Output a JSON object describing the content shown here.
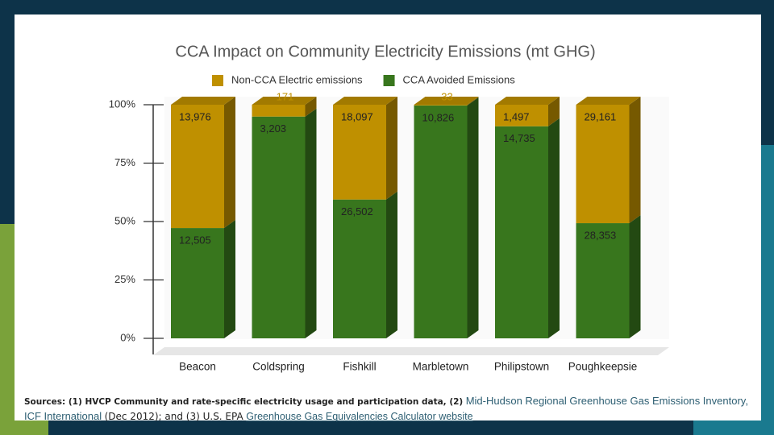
{
  "chart_data": {
    "type": "stacked_percent_bar",
    "title": "CCA Impact on Community Electricity Emissions (mt GHG)",
    "categories": [
      "Beacon",
      "Coldspring",
      "Fishkill",
      "Marbletown",
      "Philipstown",
      "Poughkeepsie"
    ],
    "series": [
      {
        "name": "CCA Avoided Emissions",
        "color": "#38761d",
        "values": [
          12505,
          3203,
          26502,
          10826,
          14735,
          28353
        ],
        "value_labels": [
          "12,505",
          "3,203",
          "26,502",
          "10,826",
          "14,735",
          "28,353"
        ]
      },
      {
        "name": "Non-CCA Electric emissions",
        "color": "#bf9000",
        "values": [
          13976,
          171,
          18097,
          33,
          1497,
          29161
        ],
        "value_labels": [
          "13,976",
          "171",
          "18,097",
          "33",
          "1,497",
          "29,161"
        ]
      }
    ],
    "ylim": [
      0,
      100
    ],
    "yticks": [
      {
        "value": 0,
        "label": "0%"
      },
      {
        "value": 25,
        "label": "25%"
      },
      {
        "value": 50,
        "label": "50%"
      },
      {
        "value": 75,
        "label": "75%"
      },
      {
        "value": 100,
        "label": "100%"
      }
    ]
  },
  "footer": {
    "sources": [
      "Sources: (1) HVCP Community and rate-specific electricity usage and participation data, (2)",
      "Mid-Hudson Regional Greenhouse Gas Emissions Inventory, ICF International",
      "(Dec 2012); and (3) U.S. EPA",
      "Greenhouse Gas Equivalencies Calculator website"
    ]
  }
}
